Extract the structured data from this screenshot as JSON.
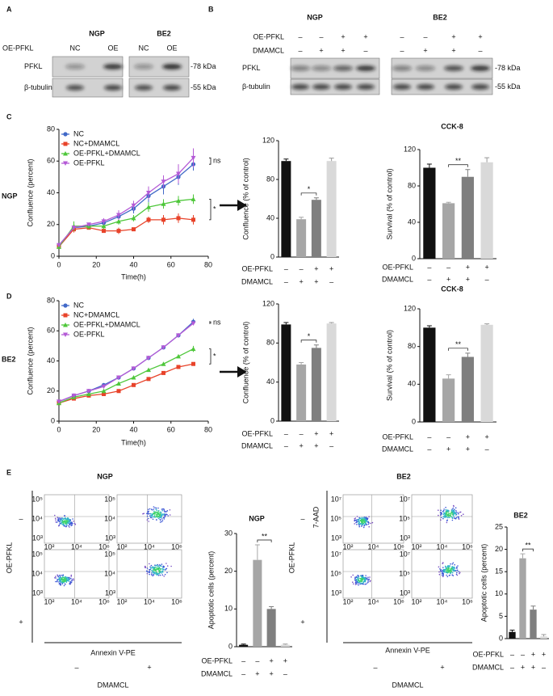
{
  "panel_labels": [
    "A",
    "B",
    "C",
    "D",
    "E"
  ],
  "blots": [
    {
      "cell_lines": [
        "NGP",
        "BE2"
      ],
      "conditions": [
        {
          "label": "OE-PFKL",
          "lanes": [
            "NC",
            "OE",
            "NC",
            "OE"
          ]
        }
      ],
      "proteins": [
        {
          "name": "PFKL",
          "size": "-78 kDa"
        },
        {
          "name": "β-tubulin",
          "size": "-55 kDa"
        }
      ]
    },
    {
      "cell_lines": [
        "NGP",
        "BE2"
      ],
      "conditions": [
        {
          "label": "OE-PFKL",
          "lanes": [
            "–",
            "–",
            "+",
            "+",
            "–",
            "–",
            "+",
            "+"
          ]
        },
        {
          "label": "DMAMCL",
          "lanes": [
            "–",
            "+",
            "+",
            "–",
            "–",
            "+",
            "+",
            "–"
          ]
        }
      ],
      "proteins": [
        {
          "name": "PFKL",
          "size": "-78 kDa"
        },
        {
          "name": "β-tubulin",
          "size": "-55 kDa"
        }
      ]
    }
  ],
  "chart_data": [
    {
      "type": "line",
      "side_label": "NGP",
      "x_label": "Time(h)",
      "y_label": "Confluence (percent)",
      "x": [
        0,
        8,
        16,
        24,
        32,
        40,
        48,
        56,
        64,
        72
      ],
      "xlim": [
        0,
        80
      ],
      "xticks": [
        0,
        20,
        40,
        60,
        80
      ],
      "ylim": [
        0,
        80
      ],
      "yticks": [
        0,
        20,
        40,
        60,
        80
      ],
      "series": [
        {
          "name": "NC",
          "color": "#4169c8",
          "marker": "circle",
          "values": [
            7,
            18,
            19,
            21,
            25,
            30,
            38,
            44,
            50,
            58
          ],
          "errors": [
            1,
            1,
            1,
            1,
            2,
            3,
            4,
            5,
            5,
            4
          ]
        },
        {
          "name": "NC+DMAMCL",
          "color": "#e8432a",
          "marker": "square",
          "values": [
            6,
            17,
            18,
            16,
            16,
            17,
            23,
            23,
            24,
            23
          ],
          "errors": [
            1,
            2,
            1,
            1,
            2,
            1,
            2,
            3,
            3,
            3
          ]
        },
        {
          "name": "OE-PFKL+DMAMCL",
          "color": "#4ec73a",
          "marker": "triangle-up",
          "values": [
            6,
            19,
            19,
            19,
            22,
            24,
            31,
            33,
            35,
            36
          ],
          "errors": [
            1,
            3,
            2,
            2,
            2,
            2,
            3,
            3,
            3,
            3
          ]
        },
        {
          "name": "OE-PFKL",
          "color": "#b45ad6",
          "marker": "triangle-down",
          "values": [
            7,
            18,
            20,
            22,
            26,
            32,
            40,
            47,
            52,
            62
          ],
          "errors": [
            1,
            1,
            1,
            2,
            3,
            3,
            4,
            4,
            6,
            6
          ]
        }
      ],
      "annotations": [
        "ns",
        "*"
      ]
    },
    {
      "type": "bar",
      "y_label": "Confluence (% of control)",
      "ylim": [
        0,
        120
      ],
      "yticks": [
        0,
        40,
        80,
        120
      ],
      "conditions": [
        {
          "label": "OE-PFKL",
          "signs": [
            "–",
            "–",
            "+",
            "+"
          ]
        },
        {
          "label": "DMAMCL",
          "signs": [
            "–",
            "+",
            "+",
            "–"
          ]
        }
      ],
      "values": [
        99,
        39,
        59,
        99
      ],
      "errors": [
        2,
        2,
        2,
        3
      ],
      "colors": [
        "#111111",
        "#a6a6a6",
        "#7f7f7f",
        "#d9d9d9"
      ],
      "annotation": "*"
    },
    {
      "type": "bar",
      "title": "CCK-8",
      "y_label": "Survival (% of control)",
      "ylim": [
        0,
        120
      ],
      "yticks": [
        0,
        40,
        80,
        120
      ],
      "conditions": [
        {
          "label": "OE-PFKL",
          "signs": [
            "–",
            "–",
            "+",
            "+"
          ]
        },
        {
          "label": "DMAMCL",
          "signs": [
            "–",
            "+",
            "+",
            "–"
          ]
        }
      ],
      "values": [
        100,
        61,
        90,
        106
      ],
      "errors": [
        4,
        1,
        8,
        5
      ],
      "colors": [
        "#111111",
        "#a6a6a6",
        "#7f7f7f",
        "#d9d9d9"
      ],
      "annotation": "**"
    },
    {
      "type": "line",
      "side_label": "BE2",
      "x_label": "Time(h)",
      "y_label": "Confluence (percent)",
      "x": [
        0,
        8,
        16,
        24,
        32,
        40,
        48,
        56,
        64,
        72
      ],
      "xlim": [
        0,
        80
      ],
      "xticks": [
        0,
        20,
        40,
        60,
        80
      ],
      "ylim": [
        0,
        80
      ],
      "yticks": [
        0,
        20,
        40,
        60,
        80
      ],
      "series": [
        {
          "name": "NC",
          "color": "#4169c8",
          "marker": "circle",
          "values": [
            13,
            17,
            20,
            24,
            29,
            35,
            42,
            49,
            57,
            66
          ],
          "errors": [
            1,
            1,
            1,
            1,
            1,
            1,
            1,
            1,
            1,
            2
          ]
        },
        {
          "name": "NC+DMAMCL",
          "color": "#e8432a",
          "marker": "square",
          "values": [
            12,
            15,
            17,
            18,
            20,
            24,
            28,
            32,
            36,
            38
          ],
          "errors": [
            1,
            1,
            1,
            1,
            1,
            1,
            1,
            1,
            1,
            1
          ]
        },
        {
          "name": "OE-PFKL+DMAMCL",
          "color": "#4ec73a",
          "marker": "triangle-up",
          "values": [
            12,
            16,
            18,
            20,
            25,
            29,
            34,
            38,
            43,
            48
          ],
          "errors": [
            1,
            1,
            1,
            1,
            1,
            1,
            1,
            1,
            1,
            2
          ]
        },
        {
          "name": "OE-PFKL",
          "color": "#b45ad6",
          "marker": "triangle-down",
          "values": [
            13,
            17,
            20,
            23,
            29,
            35,
            42,
            49,
            57,
            65
          ],
          "errors": [
            1,
            1,
            1,
            1,
            1,
            1,
            1,
            1,
            1,
            1
          ]
        }
      ],
      "annotations": [
        "ns",
        "*"
      ]
    },
    {
      "type": "bar",
      "y_label": "Confluence (% of control)",
      "ylim": [
        0,
        120
      ],
      "yticks": [
        0,
        40,
        80,
        120
      ],
      "conditions": [
        {
          "label": "OE-PFKL",
          "signs": [
            "–",
            "–",
            "+",
            "+"
          ]
        },
        {
          "label": "DMAMCL",
          "signs": [
            "–",
            "+",
            "+",
            "–"
          ]
        }
      ],
      "values": [
        99,
        58,
        75,
        100
      ],
      "errors": [
        2,
        2,
        3,
        1
      ],
      "colors": [
        "#111111",
        "#a6a6a6",
        "#7f7f7f",
        "#d9d9d9"
      ],
      "annotation": "*"
    },
    {
      "type": "bar",
      "title": "CCK-8",
      "y_label": "Survival (% of control)",
      "ylim": [
        0,
        120
      ],
      "yticks": [
        0,
        40,
        80,
        120
      ],
      "conditions": [
        {
          "label": "OE-PFKL",
          "signs": [
            "–",
            "–",
            "+",
            "+"
          ]
        },
        {
          "label": "DMAMCL",
          "signs": [
            "–",
            "+",
            "+",
            "–"
          ]
        }
      ],
      "values": [
        100,
        46,
        69,
        103
      ],
      "errors": [
        2,
        4,
        4,
        1
      ],
      "colors": [
        "#111111",
        "#a6a6a6",
        "#7f7f7f",
        "#d9d9d9"
      ],
      "annotation": "**"
    },
    {
      "type": "bar",
      "title": "NGP",
      "y_label": "Apoptotic cells (percent)",
      "ylim": [
        0,
        30
      ],
      "yticks": [
        0,
        10,
        20,
        30
      ],
      "conditions": [
        {
          "label": "OE-PFKL",
          "signs": [
            "–",
            "–",
            "+",
            "+"
          ]
        },
        {
          "label": "DMAMCL",
          "signs": [
            "–",
            "+",
            "+",
            "–"
          ]
        }
      ],
      "values": [
        0.5,
        23,
        10,
        0.5
      ],
      "errors": [
        0.2,
        4,
        0.6,
        0.2
      ],
      "colors": [
        "#111111",
        "#a6a6a6",
        "#7f7f7f",
        "#d9d9d9"
      ],
      "annotation": "**"
    },
    {
      "type": "bar",
      "title": "BE2",
      "y_label": "Apoptotic cells (percent)",
      "ylim": [
        0,
        25
      ],
      "yticks": [
        0,
        5,
        10,
        15,
        20,
        25
      ],
      "conditions": [
        {
          "label": "OE-PFKL",
          "signs": [
            "–",
            "–",
            "+",
            "+"
          ]
        },
        {
          "label": "DMAMCL",
          "signs": [
            "–",
            "+",
            "+",
            "–"
          ]
        }
      ],
      "values": [
        1.5,
        18,
        6.5,
        0.5
      ],
      "errors": [
        0.4,
        1,
        0.8,
        0.4
      ],
      "colors": [
        "#111111",
        "#a6a6a6",
        "#7f7f7f",
        "#d9d9d9"
      ],
      "annotation": "**"
    }
  ],
  "flow": [
    {
      "title": "NGP",
      "x_label": "Annexin V-PE",
      "row_label": "OE-PFKL",
      "row_signs": [
        "–",
        "+"
      ],
      "col_label": "DMAMCL",
      "col_signs": [
        "–",
        "+"
      ],
      "xticks": [
        "10²",
        "10⁴",
        "10⁶"
      ],
      "yticks": [
        "10⁵",
        "10⁴",
        "10³"
      ]
    },
    {
      "title": "BE2",
      "x_label": "Annexin V-PE",
      "y_label": "7-AAD",
      "row_label": "OE-PFKL",
      "row_signs": [
        "–",
        "+"
      ],
      "col_label": "DMAMCL",
      "col_signs": [
        "–",
        "+"
      ],
      "xticks": [
        "10²",
        "10⁴",
        "10⁶"
      ],
      "yticks": [
        "10⁷",
        "10⁵",
        "10³"
      ]
    }
  ]
}
